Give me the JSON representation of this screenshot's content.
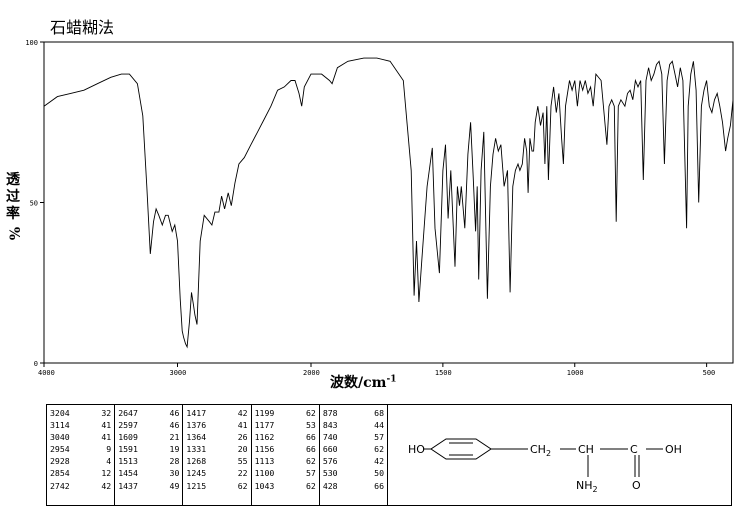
{
  "title": "石蜡糊法",
  "chart_data": {
    "type": "line",
    "title": "石蜡糊法",
    "ylabel": [
      "透",
      "过",
      "率",
      "%"
    ],
    "xlabel": "波数/cm",
    "xlabel_sup": "-1",
    "xlim": [
      4000,
      400
    ],
    "ylim": [
      0,
      100
    ],
    "x_ticks": [
      4000,
      3000,
      2000,
      1500,
      1000,
      500
    ],
    "y_ticks": [
      100,
      50,
      0
    ],
    "points": [
      [
        4000,
        80
      ],
      [
        3900,
        83
      ],
      [
        3800,
        84
      ],
      [
        3700,
        85
      ],
      [
        3600,
        87
      ],
      [
        3500,
        89
      ],
      [
        3420,
        90
      ],
      [
        3360,
        90
      ],
      [
        3300,
        87
      ],
      [
        3260,
        77
      ],
      [
        3230,
        55
      ],
      [
        3204,
        34
      ],
      [
        3180,
        44
      ],
      [
        3160,
        48
      ],
      [
        3140,
        46
      ],
      [
        3114,
        43
      ],
      [
        3090,
        46
      ],
      [
        3070,
        46
      ],
      [
        3040,
        41
      ],
      [
        3020,
        43
      ],
      [
        3000,
        38
      ],
      [
        2980,
        20
      ],
      [
        2965,
        10
      ],
      [
        2954,
        8
      ],
      [
        2940,
        6
      ],
      [
        2928,
        5
      ],
      [
        2910,
        13
      ],
      [
        2895,
        22
      ],
      [
        2880,
        18
      ],
      [
        2870,
        15
      ],
      [
        2854,
        12
      ],
      [
        2830,
        38
      ],
      [
        2800,
        46
      ],
      [
        2760,
        44
      ],
      [
        2742,
        43
      ],
      [
        2720,
        47
      ],
      [
        2690,
        47
      ],
      [
        2670,
        52
      ],
      [
        2647,
        48
      ],
      [
        2620,
        53
      ],
      [
        2597,
        49
      ],
      [
        2570,
        56
      ],
      [
        2540,
        62
      ],
      [
        2500,
        64
      ],
      [
        2450,
        68
      ],
      [
        2400,
        72
      ],
      [
        2350,
        76
      ],
      [
        2300,
        80
      ],
      [
        2250,
        85
      ],
      [
        2200,
        86
      ],
      [
        2150,
        88
      ],
      [
        2120,
        88
      ],
      [
        2090,
        84
      ],
      [
        2070,
        80
      ],
      [
        2050,
        86
      ],
      [
        2000,
        90
      ],
      [
        1960,
        90
      ],
      [
        1930,
        88
      ],
      [
        1920,
        87
      ],
      [
        1900,
        92
      ],
      [
        1860,
        94
      ],
      [
        1800,
        95
      ],
      [
        1750,
        95
      ],
      [
        1700,
        94
      ],
      [
        1650,
        88
      ],
      [
        1620,
        60
      ],
      [
        1609,
        21
      ],
      [
        1600,
        38
      ],
      [
        1591,
        19
      ],
      [
        1580,
        32
      ],
      [
        1560,
        55
      ],
      [
        1540,
        67
      ],
      [
        1530,
        42
      ],
      [
        1513,
        28
      ],
      [
        1500,
        60
      ],
      [
        1490,
        68
      ],
      [
        1480,
        45
      ],
      [
        1470,
        60
      ],
      [
        1454,
        30
      ],
      [
        1445,
        55
      ],
      [
        1437,
        49
      ],
      [
        1430,
        55
      ],
      [
        1417,
        42
      ],
      [
        1405,
        65
      ],
      [
        1395,
        75
      ],
      [
        1385,
        58
      ],
      [
        1376,
        41
      ],
      [
        1370,
        55
      ],
      [
        1364,
        26
      ],
      [
        1355,
        60
      ],
      [
        1345,
        72
      ],
      [
        1331,
        20
      ],
      [
        1320,
        55
      ],
      [
        1310,
        65
      ],
      [
        1300,
        70
      ],
      [
        1290,
        66
      ],
      [
        1280,
        68
      ],
      [
        1268,
        55
      ],
      [
        1255,
        60
      ],
      [
        1245,
        22
      ],
      [
        1235,
        55
      ],
      [
        1225,
        60
      ],
      [
        1215,
        62
      ],
      [
        1208,
        60
      ],
      [
        1199,
        62
      ],
      [
        1190,
        70
      ],
      [
        1182,
        66
      ],
      [
        1177,
        53
      ],
      [
        1170,
        70
      ],
      [
        1162,
        66
      ],
      [
        1156,
        66
      ],
      [
        1150,
        75
      ],
      [
        1140,
        80
      ],
      [
        1130,
        74
      ],
      [
        1120,
        78
      ],
      [
        1113,
        62
      ],
      [
        1106,
        80
      ],
      [
        1100,
        57
      ],
      [
        1090,
        80
      ],
      [
        1080,
        86
      ],
      [
        1070,
        78
      ],
      [
        1060,
        84
      ],
      [
        1050,
        70
      ],
      [
        1043,
        62
      ],
      [
        1035,
        80
      ],
      [
        1020,
        88
      ],
      [
        1010,
        85
      ],
      [
        1000,
        88
      ],
      [
        990,
        80
      ],
      [
        980,
        88
      ],
      [
        970,
        85
      ],
      [
        960,
        88
      ],
      [
        950,
        84
      ],
      [
        940,
        86
      ],
      [
        930,
        80
      ],
      [
        920,
        90
      ],
      [
        900,
        88
      ],
      [
        878,
        68
      ],
      [
        870,
        80
      ],
      [
        860,
        82
      ],
      [
        850,
        80
      ],
      [
        843,
        44
      ],
      [
        835,
        80
      ],
      [
        825,
        82
      ],
      [
        810,
        80
      ],
      [
        800,
        84
      ],
      [
        790,
        85
      ],
      [
        780,
        82
      ],
      [
        770,
        88
      ],
      [
        760,
        86
      ],
      [
        750,
        88
      ],
      [
        740,
        57
      ],
      [
        730,
        88
      ],
      [
        720,
        92
      ],
      [
        710,
        88
      ],
      [
        700,
        90
      ],
      [
        690,
        93
      ],
      [
        680,
        94
      ],
      [
        670,
        90
      ],
      [
        660,
        62
      ],
      [
        650,
        88
      ],
      [
        640,
        93
      ],
      [
        630,
        94
      ],
      [
        620,
        90
      ],
      [
        610,
        86
      ],
      [
        600,
        92
      ],
      [
        590,
        88
      ],
      [
        576,
        42
      ],
      [
        570,
        80
      ],
      [
        560,
        90
      ],
      [
        550,
        94
      ],
      [
        540,
        85
      ],
      [
        530,
        50
      ],
      [
        520,
        80
      ],
      [
        510,
        85
      ],
      [
        500,
        88
      ],
      [
        490,
        80
      ],
      [
        480,
        78
      ],
      [
        470,
        82
      ],
      [
        460,
        84
      ],
      [
        450,
        80
      ],
      [
        440,
        75
      ],
      [
        428,
        66
      ],
      [
        420,
        70
      ],
      [
        410,
        74
      ],
      [
        400,
        82
      ]
    ]
  },
  "peak_table": [
    [
      [
        "3204",
        "32"
      ],
      [
        "3114",
        "41"
      ],
      [
        "3040",
        "41"
      ],
      [
        "2954",
        "9"
      ],
      [
        "2928",
        "4"
      ],
      [
        "2854",
        "12"
      ],
      [
        "2742",
        "42"
      ]
    ],
    [
      [
        "2647",
        "46"
      ],
      [
        "2597",
        "46"
      ],
      [
        "1609",
        "21"
      ],
      [
        "1591",
        "19"
      ],
      [
        "1513",
        "28"
      ],
      [
        "1454",
        "30"
      ],
      [
        "1437",
        "49"
      ]
    ],
    [
      [
        "1417",
        "42"
      ],
      [
        "1376",
        "41"
      ],
      [
        "1364",
        "26"
      ],
      [
        "1331",
        "20"
      ],
      [
        "1268",
        "55"
      ],
      [
        "1245",
        "22"
      ],
      [
        "1215",
        "62"
      ]
    ],
    [
      [
        "1199",
        "62"
      ],
      [
        "1177",
        "53"
      ],
      [
        "1162",
        "66"
      ],
      [
        "1156",
        "66"
      ],
      [
        "1113",
        "62"
      ],
      [
        "1100",
        "57"
      ],
      [
        "1043",
        "62"
      ]
    ],
    [
      [
        "878",
        "68"
      ],
      [
        "843",
        "44"
      ],
      [
        "740",
        "57"
      ],
      [
        "660",
        "62"
      ],
      [
        "576",
        "42"
      ],
      [
        "530",
        "50"
      ],
      [
        "428",
        "66"
      ]
    ]
  ],
  "structure": {
    "ho": "HO",
    "ch2": "CH",
    "ch2_sub": "2",
    "ch": "CH",
    "c": "C",
    "oh": "OH",
    "o": "O",
    "nh2": "NH",
    "nh2_sub": "2"
  }
}
